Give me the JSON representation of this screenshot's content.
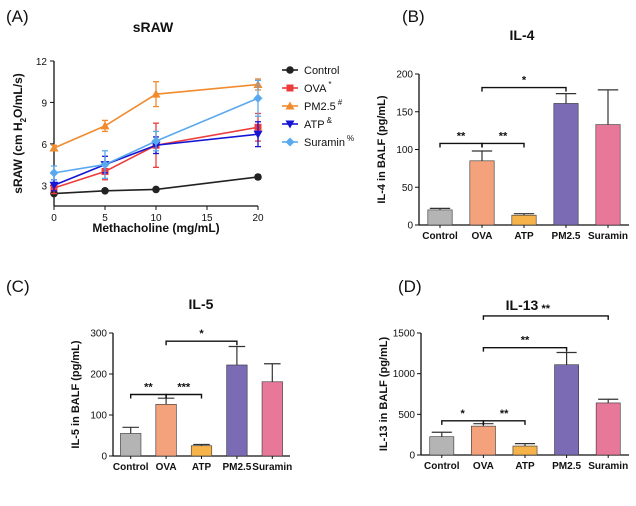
{
  "panels": {
    "A": {
      "label": "(A)"
    },
    "B": {
      "label": "(B)"
    },
    "C": {
      "label": "(C)"
    },
    "D": {
      "label": "(D)"
    }
  },
  "chart_data": [
    {
      "id": "A",
      "type": "line",
      "title": "sRAW",
      "xlabel": "Methacholine (mg/mL)",
      "ylabel_parts": [
        "sRAW (cm H",
        "2",
        "O/mL/s)"
      ],
      "xlim": [
        0,
        20
      ],
      "ylim": [
        1.5,
        12
      ],
      "xticks": [
        "0",
        "5",
        "10",
        "15",
        "20"
      ],
      "yticks": [
        "3",
        "6",
        "9",
        "12"
      ],
      "x": [
        0,
        5,
        10,
        20
      ],
      "legend_position": "top-right",
      "series": [
        {
          "name": "Control",
          "sup": "",
          "color": "#222222",
          "marker": "circle",
          "values": [
            2.4,
            2.6,
            2.7,
            3.6
          ],
          "errors": [
            0.1,
            0.1,
            0.1,
            0.15
          ]
        },
        {
          "name": "OVA",
          "sup": "*",
          "color": "#ee3b3b",
          "marker": "square",
          "values": [
            2.8,
            4.0,
            5.9,
            7.2
          ],
          "errors": [
            0.4,
            0.6,
            1.6,
            1.0
          ]
        },
        {
          "name": "PM2.5",
          "sup": "#",
          "color": "#f28a2e",
          "marker": "triangle-up",
          "values": [
            5.7,
            7.3,
            9.6,
            10.3
          ],
          "errors": [
            0.2,
            0.4,
            0.9,
            0.4
          ]
        },
        {
          "name": "ATP",
          "sup": "&",
          "color": "#1515d6",
          "marker": "triangle-down",
          "values": [
            3.0,
            4.5,
            5.9,
            6.7
          ],
          "errors": [
            0.4,
            0.6,
            0.6,
            0.9
          ]
        },
        {
          "name": "Suramin",
          "sup": "%",
          "color": "#5aa9ee",
          "marker": "diamond",
          "values": [
            3.9,
            4.5,
            6.2,
            9.3
          ],
          "errors": [
            0.5,
            1.0,
            0.7,
            1.3
          ]
        }
      ]
    },
    {
      "id": "B",
      "type": "bar",
      "title": "IL-4",
      "ylabel": "IL-4 in BALF (pg/mL)",
      "ylim": [
        0,
        200
      ],
      "yticks": [
        "0",
        "50",
        "100",
        "150",
        "200"
      ],
      "categories": [
        "Control",
        "OVA",
        "ATP",
        "PM2.5",
        "Suramin"
      ],
      "values": [
        20,
        85,
        13,
        161,
        133
      ],
      "errors": [
        2,
        13,
        2,
        13,
        46
      ],
      "colors": [
        "#b4b4b4",
        "#f4a27c",
        "#f6b34a",
        "#7b6bb5",
        "#e8789a"
      ],
      "significance": [
        {
          "from": 0,
          "to": 1,
          "label": "**",
          "y": 108
        },
        {
          "from": 1,
          "to": 2,
          "label": "**",
          "y": 108
        },
        {
          "from": 1,
          "to": 3,
          "label": "*",
          "y": 182
        }
      ]
    },
    {
      "id": "C",
      "type": "bar",
      "title": "IL-5",
      "ylabel": "IL-5 in BALF (pg/mL)",
      "ylim": [
        0,
        300
      ],
      "yticks": [
        "0",
        "100",
        "200",
        "300"
      ],
      "categories": [
        "Control",
        "OVA",
        "ATP",
        "PM2.5",
        "Suramin"
      ],
      "values": [
        55,
        126,
        25,
        222,
        181
      ],
      "errors": [
        15,
        15,
        3,
        45,
        44
      ],
      "colors": [
        "#b4b4b4",
        "#f4a27c",
        "#f6b34a",
        "#7b6bb5",
        "#e8789a"
      ],
      "significance": [
        {
          "from": 0,
          "to": 1,
          "label": "**",
          "y": 150
        },
        {
          "from": 1,
          "to": 2,
          "label": "***",
          "y": 150
        },
        {
          "from": 1,
          "to": 3,
          "label": "*",
          "y": 280
        }
      ]
    },
    {
      "id": "D",
      "type": "bar",
      "title": "IL-13",
      "ylabel": "IL-13 in BALF (pg/mL)",
      "ylim": [
        0,
        1500
      ],
      "yticks": [
        "0",
        "500",
        "1000",
        "1500"
      ],
      "categories": [
        "Control",
        "OVA",
        "ATP",
        "PM2.5",
        "Suramin"
      ],
      "values": [
        225,
        355,
        110,
        1110,
        640
      ],
      "errors": [
        55,
        30,
        30,
        150,
        45
      ],
      "colors": [
        "#b4b4b4",
        "#f4a27c",
        "#f6b34a",
        "#7b6bb5",
        "#e8789a"
      ],
      "significance": [
        {
          "from": 0,
          "to": 1,
          "label": "*",
          "y": 420
        },
        {
          "from": 1,
          "to": 2,
          "label": "**",
          "y": 420
        },
        {
          "from": 1,
          "to": 3,
          "label": "**",
          "y": 1320
        },
        {
          "from": 1,
          "to": 4,
          "label": "**",
          "y": 1710
        }
      ]
    }
  ]
}
